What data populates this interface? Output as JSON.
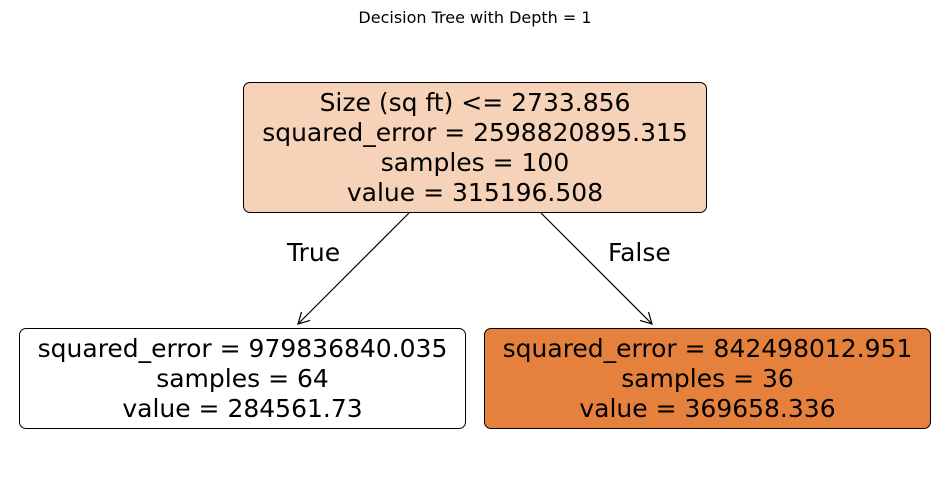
{
  "title": "Decision Tree with Depth = 1",
  "colors": {
    "root_fill": "#f6d2b8",
    "left_fill": "#ffffff",
    "right_fill": "#e6813d",
    "edge": "#000000"
  },
  "nodes": {
    "root": {
      "split": "Size (sq ft) <= 2733.856",
      "squared_error": "squared_error = 2598820895.315",
      "samples": "samples = 100",
      "value": "value = 315196.508"
    },
    "left": {
      "squared_error": "squared_error = 979836840.035",
      "samples": "samples = 64",
      "value": "value = 284561.73"
    },
    "right": {
      "squared_error": "squared_error = 842498012.951",
      "samples": "samples = 36",
      "value": "value = 369658.336"
    }
  },
  "edges": {
    "true_label": "True",
    "false_label": "False"
  }
}
